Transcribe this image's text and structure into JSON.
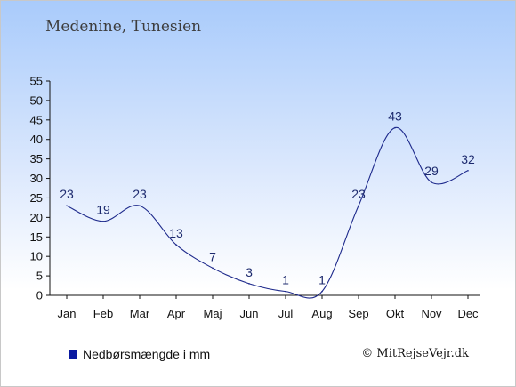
{
  "header": {
    "title": "Medenine, Tunesien"
  },
  "legend": {
    "label": "Nedbørsmængde i mm",
    "color": "#0a1aa0"
  },
  "footer": {
    "copyright": "© MitRejseVejr.dk"
  },
  "chart_data": {
    "type": "line",
    "categories": [
      "Jan",
      "Feb",
      "Mar",
      "Apr",
      "Maj",
      "Jun",
      "Jul",
      "Aug",
      "Sep",
      "Okt",
      "Nov",
      "Dec"
    ],
    "series": [
      {
        "name": "Nedbørsmængde i mm",
        "values": [
          23,
          19,
          23,
          13,
          7,
          3,
          1,
          1,
          23,
          43,
          29,
          32
        ],
        "color": "#1e2a8c"
      }
    ],
    "yticks": [
      0,
      5,
      10,
      15,
      20,
      25,
      30,
      35,
      40,
      45,
      50,
      55
    ],
    "ylim": [
      0,
      55
    ],
    "grid": false,
    "legend_position": "bottom-left"
  }
}
